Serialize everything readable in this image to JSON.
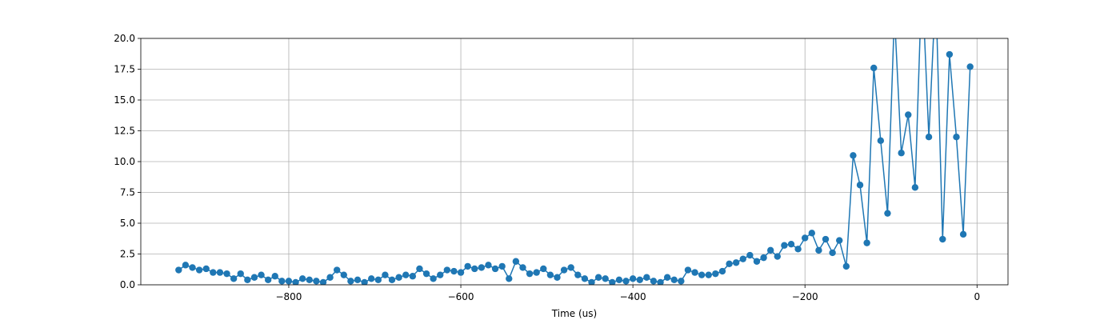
{
  "chart_data": {
    "type": "line",
    "xlabel": "Time (us)",
    "color": "#1f77b4",
    "grid": true,
    "x": [
      -928,
      -920,
      -912,
      -904,
      -896,
      -888,
      -880,
      -872,
      -864,
      -856,
      -848,
      -840,
      -832,
      -824,
      -816,
      -808,
      -800,
      -792,
      -784,
      -776,
      -768,
      -760,
      -752,
      -744,
      -736,
      -728,
      -720,
      -712,
      -704,
      -696,
      -688,
      -680,
      -672,
      -664,
      -656,
      -648,
      -640,
      -632,
      -624,
      -616,
      -608,
      -600,
      -592,
      -584,
      -576,
      -568,
      -560,
      -552,
      -544,
      -536,
      -528,
      -520,
      -512,
      -504,
      -496,
      -488,
      -480,
      -472,
      -464,
      -456,
      -448,
      -440,
      -432,
      -424,
      -416,
      -408,
      -400,
      -392,
      -384,
      -376,
      -368,
      -360,
      -352,
      -344,
      -336,
      -328,
      -320,
      -312,
      -304,
      -296,
      -288,
      -280,
      -272,
      -264,
      -256,
      -248,
      -240,
      -232,
      -224,
      -216,
      -208,
      -200,
      -192,
      -184,
      -176,
      -168,
      -160,
      -152,
      -144,
      -136,
      -128,
      -120,
      -112,
      -104,
      -96,
      -88,
      -80,
      -72,
      -64,
      -56,
      -48,
      -40,
      -32,
      -24,
      -16,
      -8
    ],
    "values": [
      1.2,
      1.6,
      1.4,
      1.2,
      1.3,
      1.0,
      1.0,
      0.9,
      0.5,
      0.9,
      0.4,
      0.6,
      0.8,
      0.4,
      0.7,
      0.3,
      0.3,
      0.2,
      0.5,
      0.4,
      0.3,
      0.2,
      0.6,
      1.2,
      0.8,
      0.3,
      0.4,
      0.2,
      0.5,
      0.4,
      0.8,
      0.4,
      0.6,
      0.8,
      0.7,
      1.3,
      0.9,
      0.5,
      0.8,
      1.2,
      1.1,
      1.0,
      1.5,
      1.3,
      1.4,
      1.6,
      1.3,
      1.5,
      0.5,
      1.9,
      1.4,
      0.9,
      1.0,
      1.3,
      0.8,
      0.6,
      1.2,
      1.4,
      0.8,
      0.5,
      0.2,
      0.6,
      0.5,
      0.2,
      0.4,
      0.3,
      0.5,
      0.4,
      0.6,
      0.3,
      0.2,
      0.6,
      0.4,
      0.3,
      1.2,
      1.0,
      0.8,
      0.8,
      0.9,
      1.1,
      1.7,
      1.8,
      2.1,
      2.4,
      1.9,
      2.2,
      2.8,
      2.3,
      3.2,
      3.3,
      2.9,
      3.8,
      4.2,
      2.8,
      3.7,
      2.6,
      3.6,
      1.5,
      10.5,
      8.1,
      3.4,
      17.6,
      11.7,
      5.8,
      22,
      10.7,
      13.8,
      7.9,
      25,
      12.0,
      24,
      3.7,
      18.7,
      12.0,
      4.1,
      17.7
    ],
    "xlim": [
      -972,
      36
    ],
    "xticks": [
      {
        "value": -800,
        "label": "−800"
      },
      {
        "value": -600,
        "label": "−600"
      },
      {
        "value": -400,
        "label": "−400"
      },
      {
        "value": -200,
        "label": "−200"
      },
      0
    ],
    "ylim": [
      0,
      20
    ],
    "yticks": [
      {
        "value": 0,
        "label": "0.0"
      },
      2.5,
      {
        "value": 5,
        "label": "5.0"
      },
      7.5,
      {
        "value": 10,
        "label": "10.0"
      },
      12.5,
      {
        "value": 15,
        "label": "15.0"
      },
      17.5,
      {
        "value": 20,
        "label": "20.0"
      }
    ]
  }
}
